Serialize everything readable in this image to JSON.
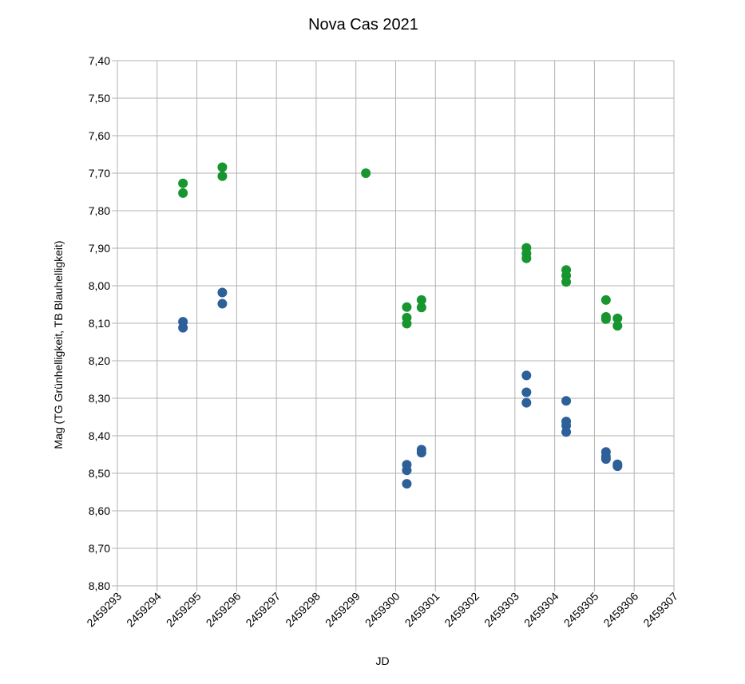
{
  "chart_data": {
    "type": "scatter",
    "title": "Nova Cas 2021",
    "xlabel": "JD",
    "ylabel": "Mag (TG Grünhelligkeit, TB Blauhelligkeit)",
    "xlim": [
      2459293,
      2459307
    ],
    "ylim": [
      7.4,
      8.8
    ],
    "y_inverted": true,
    "grid": true,
    "legend": "none",
    "x_ticks": [
      "2459293",
      "2459294",
      "2459295",
      "2459296",
      "2459297",
      "2459298",
      "2459299",
      "2459300",
      "2459301",
      "2459302",
      "2459303",
      "2459304",
      "2459305",
      "2459306",
      "2459307"
    ],
    "y_ticks": [
      "7,40",
      "7,50",
      "7,60",
      "7,70",
      "7,80",
      "7,90",
      "8,00",
      "8,10",
      "8,20",
      "8,30",
      "8,40",
      "8,50",
      "8,60",
      "8,70",
      "8,80"
    ],
    "series": [
      {
        "name": "TG",
        "color": "#17952f",
        "points": [
          [
            2459294.65,
            7.727
          ],
          [
            2459294.65,
            7.753
          ],
          [
            2459295.64,
            7.684
          ],
          [
            2459295.64,
            7.708
          ],
          [
            2459299.25,
            7.7
          ],
          [
            2459300.28,
            8.057
          ],
          [
            2459300.28,
            8.085
          ],
          [
            2459300.28,
            8.101
          ],
          [
            2459300.65,
            8.038
          ],
          [
            2459300.65,
            8.058
          ],
          [
            2459303.29,
            7.899
          ],
          [
            2459303.29,
            7.914
          ],
          [
            2459303.29,
            7.927
          ],
          [
            2459304.29,
            7.958
          ],
          [
            2459304.29,
            7.973
          ],
          [
            2459304.29,
            7.99
          ],
          [
            2459305.29,
            8.038
          ],
          [
            2459305.29,
            8.083
          ],
          [
            2459305.29,
            8.089
          ],
          [
            2459305.58,
            8.087
          ],
          [
            2459305.58,
            8.107
          ]
        ]
      },
      {
        "name": "TB",
        "color": "#2d5f99",
        "points": [
          [
            2459294.65,
            8.096
          ],
          [
            2459294.65,
            8.112
          ],
          [
            2459295.64,
            8.018
          ],
          [
            2459295.64,
            8.048
          ],
          [
            2459300.28,
            8.477
          ],
          [
            2459300.28,
            8.492
          ],
          [
            2459300.28,
            8.528
          ],
          [
            2459300.65,
            8.437
          ],
          [
            2459300.65,
            8.445
          ],
          [
            2459303.29,
            8.239
          ],
          [
            2459303.29,
            8.284
          ],
          [
            2459303.29,
            8.312
          ],
          [
            2459304.29,
            8.307
          ],
          [
            2459304.29,
            8.362
          ],
          [
            2459304.29,
            8.373
          ],
          [
            2459304.29,
            8.39
          ],
          [
            2459305.29,
            8.443
          ],
          [
            2459305.29,
            8.455
          ],
          [
            2459305.29,
            8.462
          ],
          [
            2459305.58,
            8.476
          ],
          [
            2459305.58,
            8.481
          ]
        ]
      }
    ]
  }
}
